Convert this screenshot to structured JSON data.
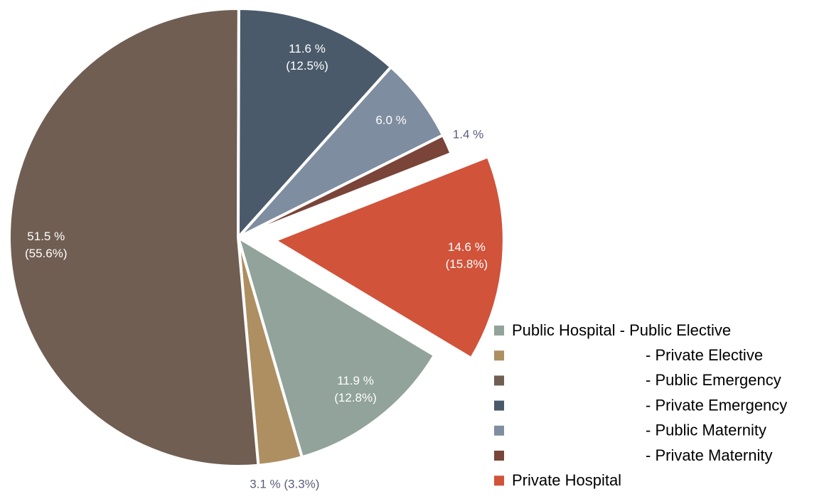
{
  "chart_data": {
    "type": "pie",
    "categories": [
      "Public Hospital - Public Elective",
      "- Private Elective",
      "- Public Emergency",
      "- Private Emergency",
      "- Public Maternity",
      "- Private Maternity",
      "Private Hospital"
    ],
    "values": [
      11.9,
      3.1,
      51.5,
      11.6,
      6.0,
      1.4,
      14.6
    ],
    "value_labels": [
      [
        "11.9 %",
        "(12.8%)"
      ],
      [
        "3.1 % (3.3%)"
      ],
      [
        "51.5 %",
        "(55.6%)"
      ],
      [
        "11.6 %",
        "(12.5%)"
      ],
      [
        "6.0 %"
      ],
      [
        "1.4 %"
      ],
      [
        "14.6 %",
        "(15.8%)"
      ]
    ],
    "colors": [
      "#91a39a",
      "#ad8f62",
      "#705e53",
      "#4a5a6a",
      "#7f8da0",
      "#7a4438",
      "#d0533a"
    ]
  }
}
